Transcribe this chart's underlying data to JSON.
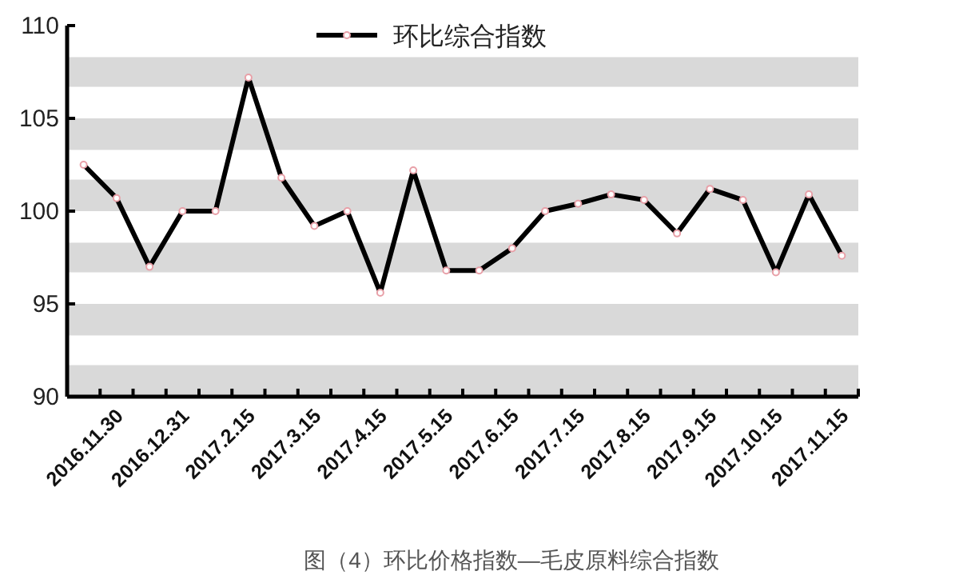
{
  "chart_data": {
    "type": "line",
    "categories": [
      null,
      "2016.11.30",
      null,
      "2016.12.31",
      null,
      "2017.2.15",
      null,
      "2017.3.15",
      null,
      "2017.4.15",
      null,
      "2017.5.15",
      null,
      "2017.6.15",
      null,
      "2017.7.15",
      null,
      "2017.8.15",
      null,
      "2017.9.15",
      null,
      "2017.10.15",
      null,
      "2017.11.15"
    ],
    "series": [
      {
        "name": "环比综合指数",
        "color": "#000000",
        "values": [
          102.5,
          100.7,
          97.0,
          100.0,
          100.0,
          107.2,
          101.8,
          99.2,
          100.0,
          95.6,
          102.2,
          96.8,
          96.8,
          98.0,
          100.0,
          100.4,
          100.9,
          100.6,
          98.8,
          101.2,
          100.6,
          96.7,
          100.9,
          97.6
        ]
      }
    ],
    "ylim": [
      90,
      110
    ],
    "yticks": [
      90,
      95,
      100,
      105,
      110
    ],
    "bands": [
      {
        "axis": "y",
        "from": 90,
        "to": 91.7,
        "color": "#d9d9d9"
      },
      {
        "axis": "y",
        "from": 93.3,
        "to": 95,
        "color": "#d9d9d9"
      },
      {
        "axis": "y",
        "from": 96.7,
        "to": 98.3,
        "color": "#d9d9d9"
      },
      {
        "axis": "y",
        "from": 100,
        "to": 101.7,
        "color": "#d9d9d9"
      },
      {
        "axis": "y",
        "from": 103.3,
        "to": 105,
        "color": "#d9d9d9"
      },
      {
        "axis": "y",
        "from": 106.7,
        "to": 108.3,
        "color": "#d9d9d9"
      }
    ],
    "legend": "top",
    "marker": "circle",
    "line_style": "solid",
    "annotations": [
      "图（4）环比价格指数—毛皮原料综合指数"
    ]
  }
}
